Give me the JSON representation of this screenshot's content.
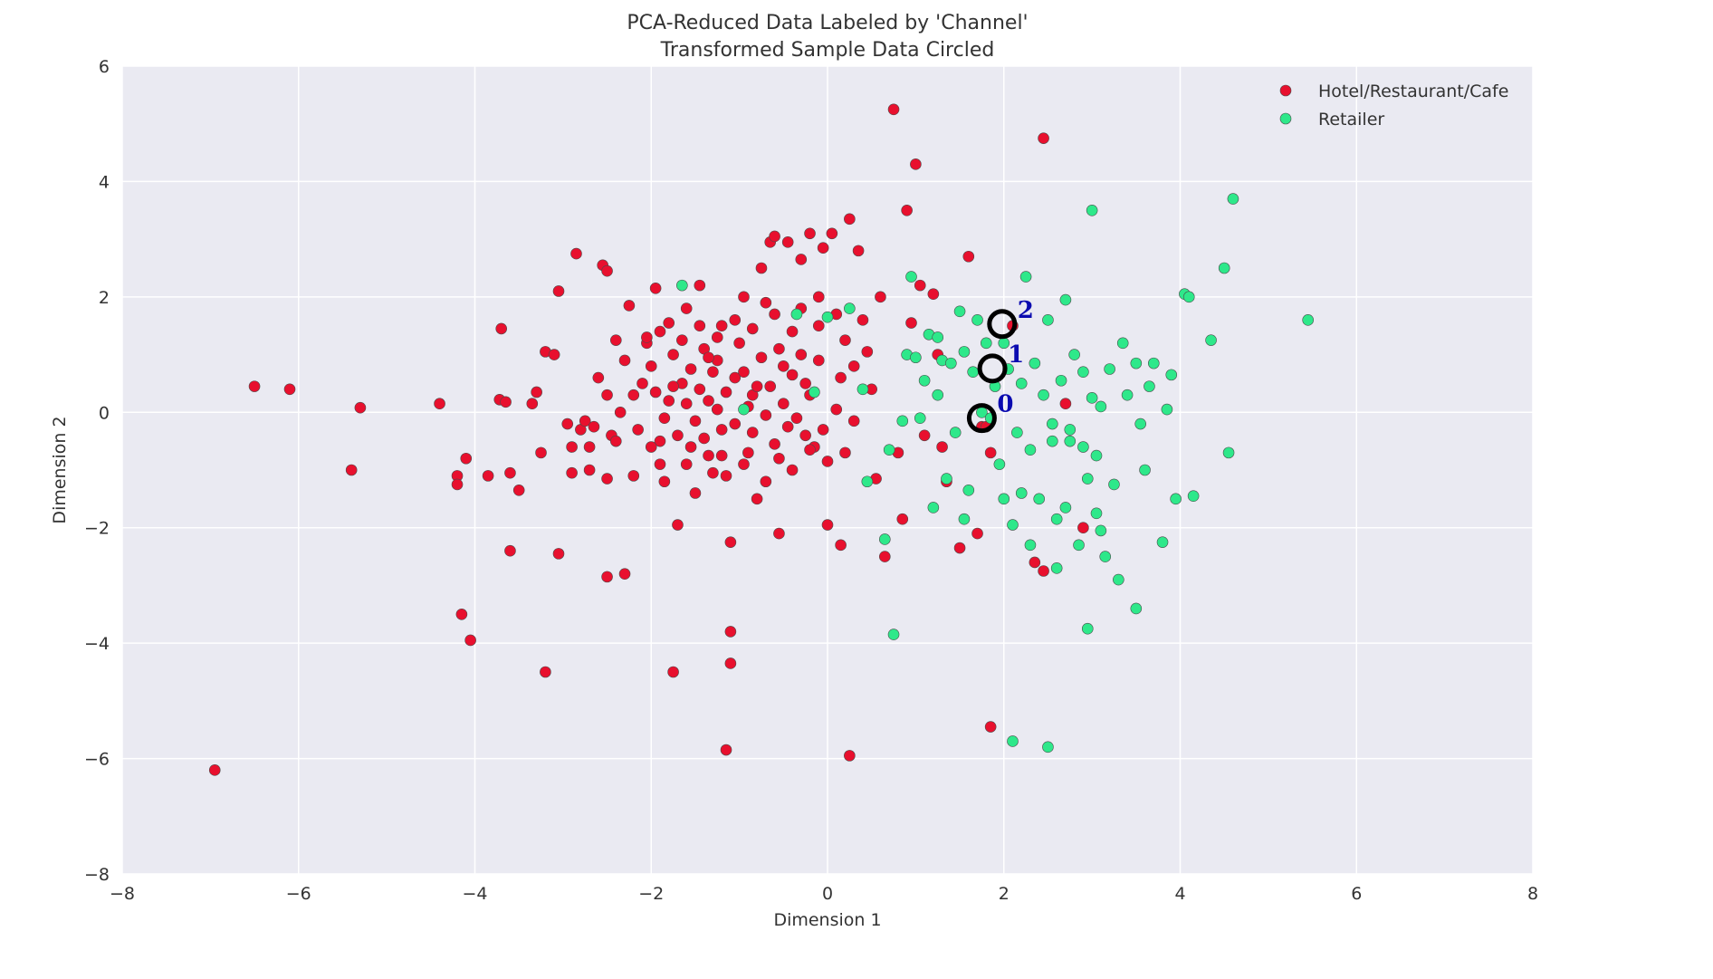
{
  "chart_data": {
    "type": "scatter",
    "title": "PCA-Reduced Data Labeled by 'Channel'",
    "subtitle": "Transformed Sample Data Circled",
    "xlabel": "Dimension 1",
    "ylabel": "Dimension 2",
    "xlim": [
      -8,
      8
    ],
    "ylim": [
      -8,
      6
    ],
    "xticks": [
      -8,
      -6,
      -4,
      -2,
      0,
      2,
      4,
      6,
      8
    ],
    "yticks": [
      -8,
      -6,
      -4,
      -2,
      0,
      2,
      4,
      6
    ],
    "grid": true,
    "legend_position": "top-right",
    "series": [
      {
        "name": "Hotel/Restaurant/Cafe",
        "color": "#e8102e",
        "points": [
          [
            -6.95,
            -6.2
          ],
          [
            -6.5,
            0.45
          ],
          [
            -6.1,
            0.4
          ],
          [
            -5.3,
            0.08
          ],
          [
            -5.4,
            -1.0
          ],
          [
            -4.4,
            0.15
          ],
          [
            -4.2,
            -1.1
          ],
          [
            -4.2,
            -1.25
          ],
          [
            -4.1,
            -0.8
          ],
          [
            -4.15,
            -3.5
          ],
          [
            -4.05,
            -3.95
          ],
          [
            -3.85,
            -1.1
          ],
          [
            -3.7,
            1.45
          ],
          [
            -3.72,
            0.22
          ],
          [
            -3.65,
            0.18
          ],
          [
            -3.6,
            -1.05
          ],
          [
            -3.6,
            -2.4
          ],
          [
            -3.5,
            -1.35
          ],
          [
            -3.35,
            0.15
          ],
          [
            -3.3,
            0.35
          ],
          [
            -3.25,
            -0.7
          ],
          [
            -3.2,
            1.05
          ],
          [
            -3.2,
            -4.5
          ],
          [
            -3.1,
            1.0
          ],
          [
            -3.05,
            2.1
          ],
          [
            -3.05,
            -2.45
          ],
          [
            -2.95,
            -0.2
          ],
          [
            -2.9,
            -0.6
          ],
          [
            -2.9,
            -1.05
          ],
          [
            -2.85,
            2.75
          ],
          [
            -2.8,
            -0.3
          ],
          [
            -2.75,
            -0.15
          ],
          [
            -2.7,
            -1.0
          ],
          [
            -2.65,
            -0.25
          ],
          [
            -2.55,
            2.55
          ],
          [
            -2.5,
            2.45
          ],
          [
            -2.5,
            0.3
          ],
          [
            -2.5,
            -1.15
          ],
          [
            -2.5,
            -2.85
          ],
          [
            -2.45,
            -0.4
          ],
          [
            -2.4,
            1.25
          ],
          [
            -2.3,
            0.9
          ],
          [
            -2.3,
            -2.8
          ],
          [
            -2.25,
            1.85
          ],
          [
            -2.2,
            -1.1
          ],
          [
            -2.1,
            0.5
          ],
          [
            -2.05,
            1.2
          ],
          [
            -2.0,
            0.8
          ],
          [
            -1.95,
            2.15
          ],
          [
            -1.9,
            1.4
          ],
          [
            -1.9,
            -0.5
          ],
          [
            -1.85,
            -1.2
          ],
          [
            -1.8,
            1.55
          ],
          [
            -1.75,
            1.0
          ],
          [
            -1.7,
            -1.95
          ],
          [
            -1.75,
            -4.5
          ],
          [
            -1.65,
            0.5
          ],
          [
            -1.6,
            1.8
          ],
          [
            -1.55,
            -0.6
          ],
          [
            -1.5,
            -1.4
          ],
          [
            -1.45,
            2.2
          ],
          [
            -1.4,
            1.1
          ],
          [
            -1.35,
            0.2
          ],
          [
            -1.3,
            -1.05
          ],
          [
            -1.25,
            0.9
          ],
          [
            -1.2,
            1.5
          ],
          [
            -1.2,
            -0.3
          ],
          [
            -1.15,
            -5.85
          ],
          [
            -1.1,
            -2.25
          ],
          [
            -1.1,
            -3.8
          ],
          [
            -1.1,
            -4.35
          ],
          [
            -1.05,
            0.6
          ],
          [
            -1.0,
            1.2
          ],
          [
            -0.95,
            2.0
          ],
          [
            -0.9,
            -0.7
          ],
          [
            -0.85,
            0.3
          ],
          [
            -0.8,
            -1.5
          ],
          [
            -0.75,
            2.5
          ],
          [
            -0.7,
            1.9
          ],
          [
            -0.65,
            2.95
          ],
          [
            -0.6,
            3.05
          ],
          [
            -0.55,
            -2.1
          ],
          [
            -0.5,
            0.8
          ],
          [
            -0.45,
            2.95
          ],
          [
            -0.4,
            1.4
          ],
          [
            -0.35,
            -0.1
          ],
          [
            -0.3,
            2.65
          ],
          [
            -0.25,
            0.5
          ],
          [
            -0.2,
            3.1
          ],
          [
            -0.15,
            -0.6
          ],
          [
            -0.1,
            2.0
          ],
          [
            -0.05,
            2.85
          ],
          [
            0.0,
            -1.95
          ],
          [
            0.05,
            3.1
          ],
          [
            0.1,
            1.7
          ],
          [
            0.15,
            -2.3
          ],
          [
            0.2,
            -0.7
          ],
          [
            0.25,
            3.35
          ],
          [
            0.25,
            -5.95
          ],
          [
            0.3,
            0.8
          ],
          [
            0.35,
            2.8
          ],
          [
            0.4,
            1.6
          ],
          [
            0.5,
            0.4
          ],
          [
            0.55,
            -1.15
          ],
          [
            0.6,
            2.0
          ],
          [
            0.65,
            -2.5
          ],
          [
            0.8,
            -0.7
          ],
          [
            0.85,
            -1.85
          ],
          [
            0.9,
            3.5
          ],
          [
            0.95,
            1.55
          ],
          [
            1.0,
            4.3
          ],
          [
            0.75,
            5.25
          ],
          [
            1.05,
            2.2
          ],
          [
            1.1,
            -0.4
          ],
          [
            1.2,
            2.05
          ],
          [
            1.25,
            1.0
          ],
          [
            1.3,
            -0.6
          ],
          [
            1.35,
            -1.2
          ],
          [
            1.5,
            -2.35
          ],
          [
            1.6,
            2.7
          ],
          [
            1.7,
            -2.1
          ],
          [
            1.75,
            -0.25
          ],
          [
            1.85,
            -0.7
          ],
          [
            1.85,
            -5.45
          ],
          [
            2.1,
            1.5
          ],
          [
            2.35,
            -2.6
          ],
          [
            2.45,
            -2.75
          ],
          [
            2.45,
            4.75
          ],
          [
            2.7,
            0.15
          ],
          [
            2.9,
            -2.0
          ],
          [
            1.8,
            -0.25
          ],
          [
            -2.05,
            1.3
          ],
          [
            -1.95,
            0.35
          ],
          [
            -1.85,
            -0.1
          ],
          [
            -1.75,
            0.45
          ],
          [
            -1.6,
            0.15
          ],
          [
            -1.55,
            0.75
          ],
          [
            -1.5,
            -0.15
          ],
          [
            -1.45,
            0.4
          ],
          [
            -1.4,
            -0.45
          ],
          [
            -1.35,
            0.95
          ],
          [
            -1.3,
            0.7
          ],
          [
            -1.25,
            0.05
          ],
          [
            -1.2,
            -0.75
          ],
          [
            -1.15,
            0.35
          ],
          [
            -1.05,
            -0.2
          ],
          [
            -0.95,
            0.7
          ],
          [
            -0.9,
            0.1
          ],
          [
            -0.85,
            -0.35
          ],
          [
            -0.75,
            0.95
          ],
          [
            -0.7,
            -0.05
          ],
          [
            -0.65,
            0.45
          ],
          [
            -0.6,
            -0.55
          ],
          [
            -0.55,
            1.1
          ],
          [
            -0.5,
            0.15
          ],
          [
            -0.45,
            -0.25
          ],
          [
            -0.4,
            0.65
          ],
          [
            -0.3,
            1.0
          ],
          [
            -0.25,
            -0.4
          ],
          [
            -0.2,
            0.3
          ],
          [
            -0.1,
            0.9
          ],
          [
            -0.05,
            -0.3
          ],
          [
            0.1,
            0.05
          ],
          [
            0.2,
            1.25
          ],
          [
            -2.2,
            0.3
          ],
          [
            -2.15,
            -0.3
          ],
          [
            -2.0,
            -0.6
          ],
          [
            -1.9,
            -0.9
          ],
          [
            -1.8,
            0.2
          ],
          [
            -1.7,
            -0.4
          ],
          [
            -1.65,
            1.25
          ],
          [
            -1.6,
            -0.9
          ],
          [
            -1.45,
            1.5
          ],
          [
            -1.35,
            -0.75
          ],
          [
            -1.25,
            1.3
          ],
          [
            -1.15,
            -1.1
          ],
          [
            -1.05,
            1.6
          ],
          [
            -0.95,
            -0.9
          ],
          [
            -0.85,
            1.45
          ],
          [
            -0.8,
            0.45
          ],
          [
            -0.7,
            -1.2
          ],
          [
            -0.6,
            1.7
          ],
          [
            -0.55,
            -0.8
          ],
          [
            -0.4,
            -1.0
          ],
          [
            -0.3,
            1.8
          ],
          [
            -0.2,
            -0.65
          ],
          [
            -0.1,
            1.5
          ],
          [
            0.0,
            -0.85
          ],
          [
            0.15,
            0.6
          ],
          [
            0.3,
            -0.15
          ],
          [
            0.45,
            1.05
          ],
          [
            -2.35,
            0.0
          ],
          [
            -2.6,
            0.6
          ],
          [
            -2.7,
            -0.6
          ],
          [
            -2.4,
            -0.5
          ]
        ]
      },
      {
        "name": "Retailer",
        "color": "#2ee88a",
        "points": [
          [
            -1.65,
            2.2
          ],
          [
            -0.95,
            0.05
          ],
          [
            -0.35,
            1.7
          ],
          [
            -0.15,
            0.35
          ],
          [
            0.0,
            1.65
          ],
          [
            0.25,
            1.8
          ],
          [
            0.4,
            0.4
          ],
          [
            0.45,
            -1.2
          ],
          [
            0.65,
            -2.2
          ],
          [
            0.7,
            -0.65
          ],
          [
            0.75,
            -3.85
          ],
          [
            0.85,
            -0.15
          ],
          [
            0.9,
            1.0
          ],
          [
            0.95,
            2.35
          ],
          [
            1.0,
            0.95
          ],
          [
            1.05,
            -0.1
          ],
          [
            1.1,
            0.55
          ],
          [
            1.15,
            1.35
          ],
          [
            1.2,
            -1.65
          ],
          [
            1.25,
            0.3
          ],
          [
            1.3,
            0.9
          ],
          [
            1.35,
            -1.15
          ],
          [
            1.4,
            0.85
          ],
          [
            1.45,
            -0.35
          ],
          [
            1.5,
            1.75
          ],
          [
            1.55,
            -1.85
          ],
          [
            1.6,
            -1.35
          ],
          [
            1.65,
            0.7
          ],
          [
            1.7,
            1.6
          ],
          [
            1.75,
            0.0
          ],
          [
            1.8,
            1.2
          ],
          [
            1.85,
            -0.1
          ],
          [
            1.9,
            0.45
          ],
          [
            1.95,
            -0.9
          ],
          [
            2.0,
            1.2
          ],
          [
            2.05,
            0.75
          ],
          [
            2.1,
            -1.95
          ],
          [
            2.1,
            -5.7
          ],
          [
            2.15,
            -0.35
          ],
          [
            2.2,
            -1.4
          ],
          [
            2.25,
            2.35
          ],
          [
            2.3,
            -0.65
          ],
          [
            2.35,
            0.85
          ],
          [
            2.4,
            -1.5
          ],
          [
            2.45,
            0.3
          ],
          [
            2.5,
            1.6
          ],
          [
            2.5,
            -5.8
          ],
          [
            2.55,
            -0.2
          ],
          [
            2.6,
            -2.7
          ],
          [
            2.65,
            0.55
          ],
          [
            2.7,
            1.95
          ],
          [
            2.7,
            -1.65
          ],
          [
            2.75,
            -0.5
          ],
          [
            2.8,
            1.0
          ],
          [
            2.85,
            -2.3
          ],
          [
            2.9,
            0.7
          ],
          [
            2.95,
            -1.15
          ],
          [
            2.95,
            -3.75
          ],
          [
            3.0,
            3.5
          ],
          [
            3.0,
            0.25
          ],
          [
            3.05,
            -1.75
          ],
          [
            3.1,
            0.1
          ],
          [
            3.15,
            -2.5
          ],
          [
            3.2,
            0.75
          ],
          [
            3.25,
            -1.25
          ],
          [
            3.3,
            -2.9
          ],
          [
            3.35,
            1.2
          ],
          [
            3.4,
            0.3
          ],
          [
            3.5,
            0.85
          ],
          [
            3.55,
            -0.2
          ],
          [
            3.6,
            -1.0
          ],
          [
            3.65,
            0.45
          ],
          [
            3.7,
            0.85
          ],
          [
            3.8,
            -2.25
          ],
          [
            3.85,
            0.05
          ],
          [
            3.9,
            0.65
          ],
          [
            3.95,
            -1.5
          ],
          [
            4.05,
            2.05
          ],
          [
            4.1,
            2.0
          ],
          [
            4.15,
            -1.45
          ],
          [
            4.35,
            1.25
          ],
          [
            4.5,
            2.5
          ],
          [
            4.55,
            -0.7
          ],
          [
            4.6,
            3.7
          ],
          [
            5.45,
            1.6
          ],
          [
            3.5,
            -3.4
          ],
          [
            1.25,
            1.3
          ],
          [
            1.55,
            1.05
          ],
          [
            2.2,
            0.5
          ],
          [
            2.55,
            -0.5
          ],
          [
            2.75,
            -0.3
          ],
          [
            2.9,
            -0.6
          ],
          [
            3.05,
            -0.75
          ],
          [
            2.3,
            -2.3
          ],
          [
            2.6,
            -1.85
          ],
          [
            3.1,
            -2.05
          ],
          [
            2.0,
            -1.5
          ]
        ]
      }
    ],
    "samples": [
      {
        "label": "0",
        "x": 1.75,
        "y": -0.1
      },
      {
        "label": "1",
        "x": 1.87,
        "y": 0.76
      },
      {
        "label": "2",
        "x": 1.98,
        "y": 1.53
      }
    ]
  }
}
